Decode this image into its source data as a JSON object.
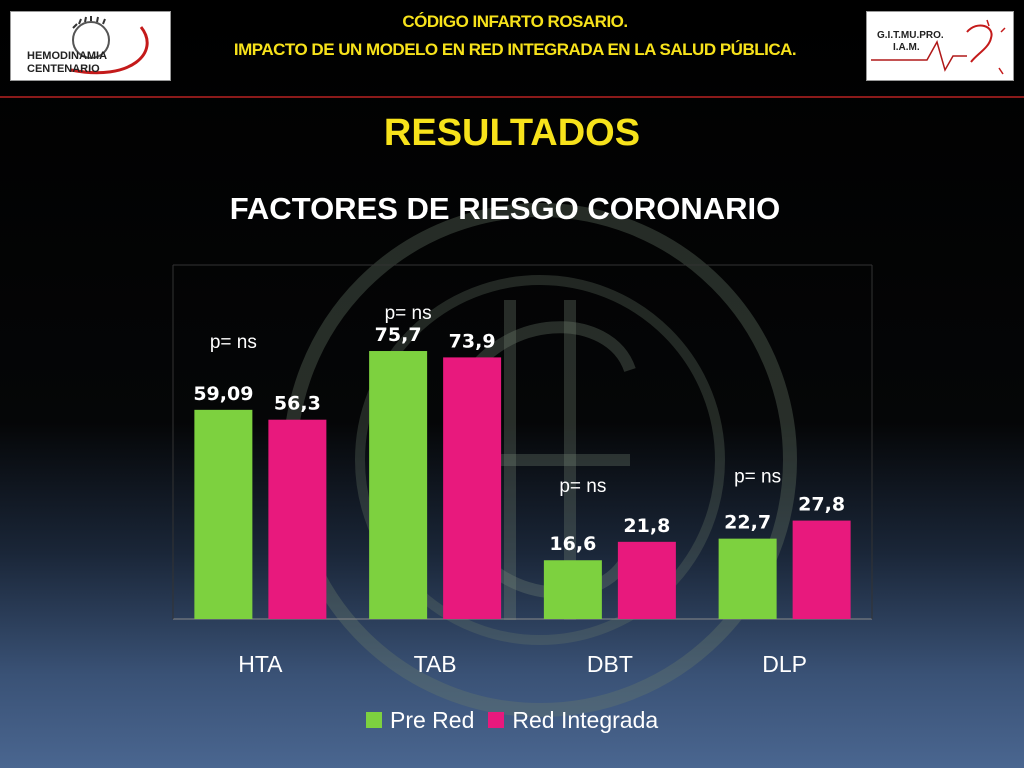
{
  "header": {
    "line1": "CÓDIGO INFARTO ROSARIO.",
    "line2": "IMPACTO DE UN MODELO EN RED INTEGRADA EN LA SALUD PÚBLICA.",
    "logo_left_text": "HEMODINAMIA CENTENARIO",
    "logo_right_text": "G.I.T.MU.PRO. I.A.M."
  },
  "page": {
    "title": "RESULTADOS",
    "subtitle": "FACTORES DE RIESGO CORONARIO"
  },
  "colors": {
    "pre_red": "#7dd13f",
    "red_integrada": "#e8197d",
    "accent": "#f7e21b"
  },
  "chart_data": {
    "type": "bar",
    "categories": [
      "HTA",
      "TAB",
      "DBT",
      "DLP"
    ],
    "series": [
      {
        "name": "Pre Red",
        "values": [
          59.09,
          75.7,
          16.6,
          22.7
        ],
        "labels": [
          "59,09",
          "75,7",
          "16,6",
          "22,7"
        ]
      },
      {
        "name": "Red Integrada",
        "values": [
          56.3,
          73.9,
          21.8,
          27.8
        ],
        "labels": [
          "56,3",
          "73,9",
          "21,8",
          "27,8"
        ]
      }
    ],
    "annotations": [
      "p= ns",
      "p= ns",
      "p= ns",
      "p= ns"
    ],
    "ylim": [
      0,
      100
    ],
    "legend": "bottom"
  }
}
